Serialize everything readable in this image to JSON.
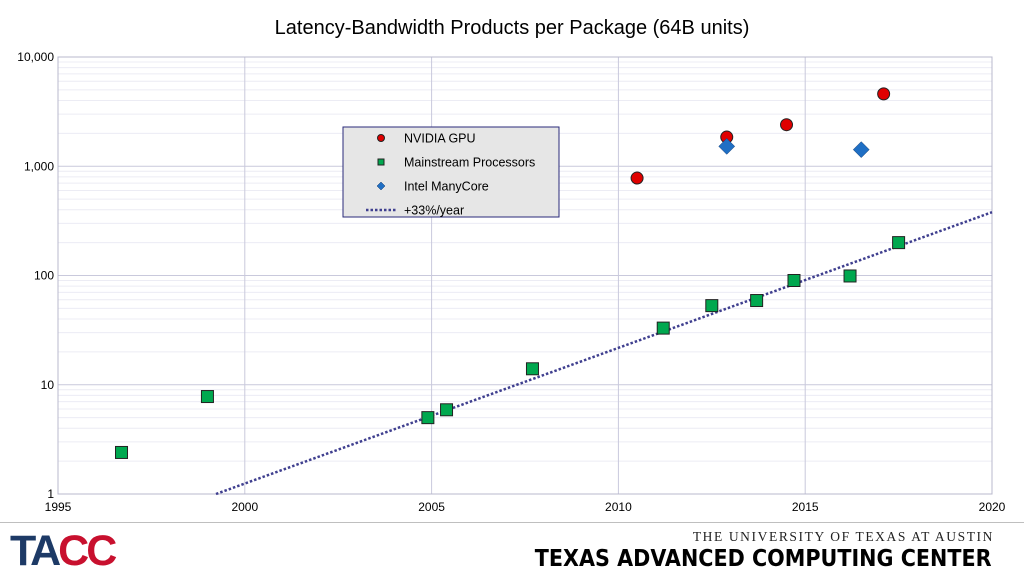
{
  "chart_data": {
    "type": "scatter",
    "title": "Latency-Bandwidth Products per Package (64B units)",
    "xlabel": "",
    "ylabel": "",
    "xlim": [
      1995,
      2020
    ],
    "ylim": [
      1,
      10000
    ],
    "y_scale": "log",
    "grid": true,
    "legend_position": "upper-center",
    "x_ticks": [
      "1995",
      "2000",
      "2005",
      "2010",
      "2015",
      "2020"
    ],
    "y_ticks": [
      "1",
      "10",
      "100",
      "1,000",
      "10,000"
    ],
    "series": [
      {
        "name": "NVIDIA GPU",
        "marker": "circle",
        "color": "#e00000",
        "points": [
          [
            2010.5,
            780
          ],
          [
            2012.9,
            1850
          ],
          [
            2014.5,
            2400
          ],
          [
            2017.1,
            4600
          ]
        ]
      },
      {
        "name": "Mainstream Processors",
        "marker": "square",
        "color": "#00a84f",
        "points": [
          [
            1996.7,
            2.4
          ],
          [
            1999.0,
            7.8
          ],
          [
            2004.9,
            5.0
          ],
          [
            2005.4,
            5.9
          ],
          [
            2007.7,
            14
          ],
          [
            2011.2,
            33
          ],
          [
            2012.5,
            53
          ],
          [
            2013.7,
            59
          ],
          [
            2014.7,
            90
          ],
          [
            2016.2,
            99
          ],
          [
            2017.5,
            200
          ]
        ]
      },
      {
        "name": "Intel ManyCore",
        "marker": "diamond",
        "color": "#1f6fc4",
        "points": [
          [
            2012.9,
            1520
          ],
          [
            2016.5,
            1420
          ]
        ]
      },
      {
        "name": "+33%/year",
        "marker": "line-dotted",
        "color": "#3f3f8f",
        "points": [
          [
            1999.23,
            1
          ],
          [
            2020,
            380
          ]
        ]
      }
    ]
  },
  "footer": {
    "logo_part1": "TA",
    "logo_part2": "CC",
    "university": "THE UNIVERSITY OF TEXAS AT AUSTIN",
    "center": "TEXAS ADVANCED COMPUTING CENTER"
  }
}
